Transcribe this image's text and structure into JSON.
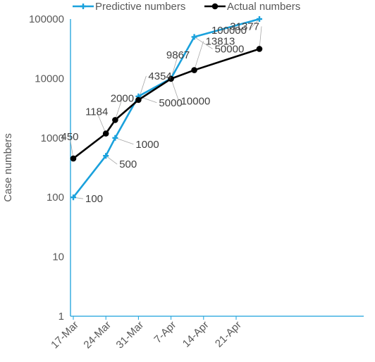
{
  "chart_data": {
    "type": "line",
    "y_scale": "log",
    "ylim": [
      1,
      100000
    ],
    "ylabel": "Case numbers",
    "xlabel": "",
    "title": "",
    "x_ticks": [
      "17-Mar",
      "24-Mar",
      "31-Mar",
      "7-Apr",
      "14-Apr",
      "21-Apr"
    ],
    "y_ticks": [
      "1",
      "10",
      "100",
      "1000",
      "10000",
      "100000"
    ],
    "legend_position": "top",
    "grid": false,
    "series": [
      {
        "name": "Predictive numbers",
        "color": "#1aa1dc",
        "marker": "plus",
        "points": [
          {
            "x": "17-Mar",
            "y": 100,
            "label": "100"
          },
          {
            "x": "24-Mar",
            "y": 500,
            "label": "500"
          },
          {
            "x": "26-Mar",
            "y": 1000,
            "label": "1000"
          },
          {
            "x": "31-Mar",
            "y": 5000,
            "label": "5000"
          },
          {
            "x": "7-Apr",
            "y": 10000,
            "label": "10000"
          },
          {
            "x": "12-Apr",
            "y": 50000,
            "label": "50000"
          },
          {
            "x": "26-Apr",
            "y": 100000,
            "label": "100000"
          }
        ]
      },
      {
        "name": "Actual numbers",
        "color": "#000000",
        "marker": "circle",
        "points": [
          {
            "x": "17-Mar",
            "y": 450,
            "label": "450"
          },
          {
            "x": "24-Mar",
            "y": 1184,
            "label": "1184"
          },
          {
            "x": "26-Mar",
            "y": 2000,
            "label": "2000"
          },
          {
            "x": "31-Mar",
            "y": 4354,
            "label": "4354"
          },
          {
            "x": "7-Apr",
            "y": 9867,
            "label": "9867"
          },
          {
            "x": "12-Apr",
            "y": 13813,
            "label": "13813"
          },
          {
            "x": "26-Apr",
            "y": 31377,
            "label": "31377"
          }
        ]
      }
    ]
  }
}
